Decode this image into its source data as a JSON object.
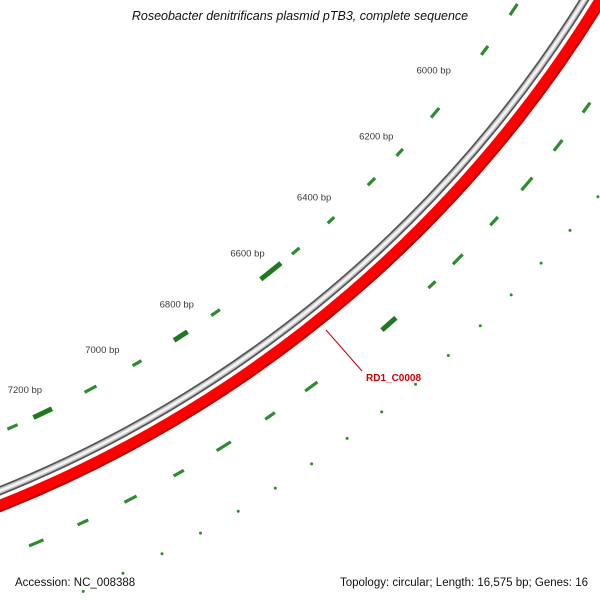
{
  "title": "Roseobacter denitrificans plasmid pTB3, complete sequence",
  "footer": {
    "accession": "Accession: NC_008388",
    "summary": "Topology: circular; Length: 16,575 bp; Genes: 16"
  },
  "chart_data": {
    "type": "circular_genome_map",
    "accession": "NC_008388",
    "topology": "circular",
    "length_bp": 16575,
    "genes_total": 16,
    "ruler_unit": "bp",
    "ruler_ticks_bp": [
      6000,
      6200,
      6400,
      6600,
      6800,
      7000,
      7200
    ],
    "highlighted_feature": {
      "name": "RD1_C0008",
      "approx_center_bp": 6560
    },
    "feature_marks": {
      "inner_ring": [
        {
          "start": 5760,
          "end": 5790,
          "bold": false
        },
        {
          "start": 5875,
          "end": 5900,
          "bold": false
        },
        {
          "start": 6052,
          "end": 6080,
          "bold": false
        },
        {
          "start": 6175,
          "end": 6196,
          "bold": false
        },
        {
          "start": 6265,
          "end": 6288,
          "bold": false
        },
        {
          "start": 6392,
          "end": 6412,
          "bold": false
        },
        {
          "start": 6496,
          "end": 6518,
          "bold": false
        },
        {
          "start": 6550,
          "end": 6608,
          "bold": true
        },
        {
          "start": 6722,
          "end": 6746,
          "bold": false
        },
        {
          "start": 6810,
          "end": 6846,
          "bold": true
        },
        {
          "start": 6932,
          "end": 6955,
          "bold": false
        },
        {
          "start": 7048,
          "end": 7078,
          "bold": false
        },
        {
          "start": 7160,
          "end": 7206,
          "bold": true
        },
        {
          "start": 7245,
          "end": 7270,
          "bold": false
        }
      ],
      "outer_ring": [
        {
          "start": 5845,
          "end": 5870,
          "bold": false
        },
        {
          "start": 5940,
          "end": 5968,
          "bold": false
        },
        {
          "start": 6038,
          "end": 6072,
          "bold": false
        },
        {
          "start": 6145,
          "end": 6168,
          "bold": false
        },
        {
          "start": 6250,
          "end": 6278,
          "bold": false
        },
        {
          "start": 6328,
          "end": 6348,
          "bold": false
        },
        {
          "start": 6438,
          "end": 6476,
          "bold": true
        },
        {
          "start": 6645,
          "end": 6676,
          "bold": false
        },
        {
          "start": 6752,
          "end": 6776,
          "bold": false
        },
        {
          "start": 6860,
          "end": 6894,
          "bold": false
        },
        {
          "start": 6972,
          "end": 6996,
          "bold": false
        },
        {
          "start": 7082,
          "end": 7110,
          "bold": false
        },
        {
          "start": 7192,
          "end": 7216,
          "bold": false
        },
        {
          "start": 7292,
          "end": 7324,
          "bold": false
        }
      ],
      "dots_bp": [
        5985,
        6070,
        6155,
        6240,
        6325,
        6410,
        6495,
        6580,
        6665,
        6750,
        6835,
        6920,
        7005,
        7090,
        7175,
        7260
      ]
    },
    "colors": {
      "backbone": "#565656",
      "backbone_mid": "#c8c8c8",
      "backbone_highlight": "#f5f5f5",
      "highlight_feature": "#ff0000",
      "highlight_feature_edge": "#b80000",
      "feature_label": "#cc0000",
      "gene_marks": "#2e8b2e",
      "gene_marks_bold": "#1f7a1f",
      "tick_text": "#3a3a3a"
    }
  }
}
